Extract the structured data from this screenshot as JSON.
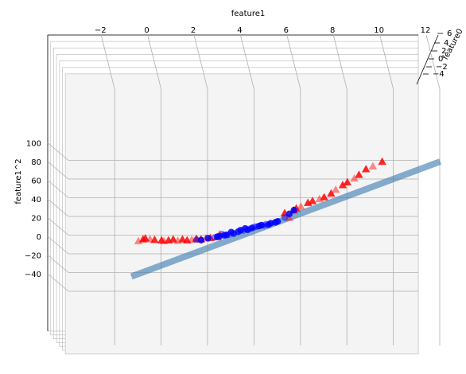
{
  "chart_data": {
    "type": "scatter",
    "projection": "3d",
    "xlabel": "feature1",
    "ylabel": "feature1^2",
    "zlabel": "feature0",
    "xticks": [
      "−2",
      "0",
      "2",
      "4",
      "6",
      "8",
      "10",
      "12"
    ],
    "yticks": [
      "100",
      "80",
      "60",
      "40",
      "20",
      "0",
      "−20",
      "−40"
    ],
    "zticks": [
      "6",
      "4",
      "2",
      "0",
      "−2",
      "−4"
    ],
    "xlim": [
      -3,
      13
    ],
    "ylim": [
      -50,
      105
    ],
    "grid": true,
    "decision_plane": {
      "color": "#4682b4",
      "from": [
        -0.8,
        -43
      ],
      "to": [
        12.5,
        80
      ]
    },
    "series": [
      {
        "marker": "triangle",
        "color": "#ff0000",
        "points": [
          [
            -0.5,
            -5
          ],
          [
            -0.3,
            -3
          ],
          [
            -0.2,
            -2
          ],
          [
            0.0,
            -3
          ],
          [
            0.2,
            -3.5
          ],
          [
            0.5,
            -4
          ],
          [
            0.6,
            -5
          ],
          [
            0.8,
            -4
          ],
          [
            1.0,
            -3
          ],
          [
            1.2,
            -4.5
          ],
          [
            1.4,
            -3
          ],
          [
            1.6,
            -4
          ],
          [
            1.8,
            -3.5
          ],
          [
            2.0,
            -2.5
          ],
          [
            2.2,
            -3
          ],
          [
            2.4,
            -2
          ],
          [
            2.6,
            -1.5
          ],
          [
            2.9,
            -0.5
          ],
          [
            3.0,
            2.5
          ],
          [
            6.2,
            28
          ],
          [
            6.3,
            30
          ],
          [
            6.5,
            32
          ],
          [
            6.8,
            36
          ],
          [
            7.0,
            38
          ],
          [
            7.3,
            40
          ],
          [
            7.5,
            42
          ],
          [
            7.8,
            46
          ],
          [
            8.0,
            50
          ],
          [
            8.3,
            55
          ],
          [
            8.5,
            58
          ],
          [
            8.8,
            62
          ],
          [
            9.0,
            66
          ],
          [
            9.3,
            72
          ],
          [
            9.6,
            75
          ],
          [
            10.0,
            80
          ],
          [
            5.8,
            25
          ],
          [
            6.0,
            20
          ]
        ]
      },
      {
        "marker": "circle",
        "color": "#0000ff",
        "points": [
          [
            2.0,
            -3.5
          ],
          [
            2.2,
            -4
          ],
          [
            2.5,
            -2
          ],
          [
            2.8,
            -1
          ],
          [
            3.0,
            0
          ],
          [
            3.2,
            1
          ],
          [
            3.4,
            2
          ],
          [
            3.6,
            3
          ],
          [
            3.8,
            5
          ],
          [
            4.0,
            6
          ],
          [
            4.2,
            7
          ],
          [
            4.4,
            9
          ],
          [
            4.5,
            10
          ],
          [
            4.7,
            11
          ],
          [
            4.8,
            12
          ],
          [
            5.0,
            13
          ],
          [
            5.2,
            14
          ],
          [
            5.4,
            15
          ],
          [
            5.8,
            20
          ],
          [
            6.0,
            24
          ],
          [
            6.2,
            28
          ],
          [
            3.1,
            2.5
          ],
          [
            3.5,
            4.5
          ],
          [
            4.1,
            8.5
          ],
          [
            4.6,
            10.5
          ],
          [
            5.1,
            12.5
          ],
          [
            3.9,
            6.5
          ],
          [
            4.3,
            8
          ],
          [
            2.9,
            -0.5
          ],
          [
            3.3,
            1.5
          ],
          [
            4.9,
            11.5
          ],
          [
            5.5,
            16
          ]
        ]
      }
    ]
  }
}
